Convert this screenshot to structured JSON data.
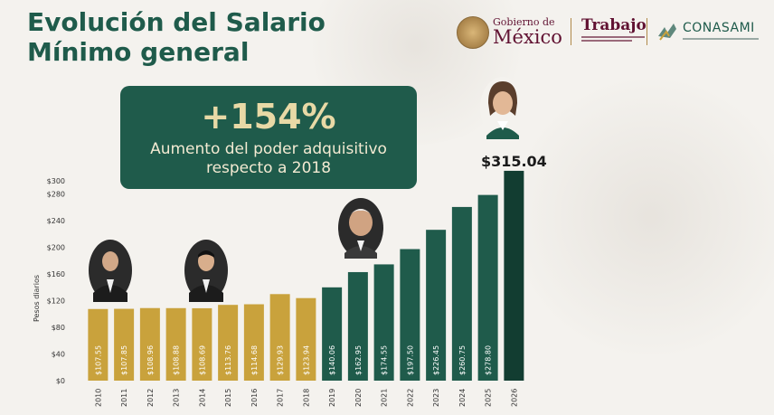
{
  "title_line1": "Evolución del Salario",
  "title_line2": "Mínimo general",
  "logos": {
    "gob_small": "Gobierno de",
    "gob_big": "México",
    "trabajo": "Trabajo",
    "conasami": "CONASAMI"
  },
  "callout": {
    "percent": "+154%",
    "line1": "Aumento del poder adquisitivo",
    "line2": "respecto a 2018"
  },
  "colors": {
    "gold": "#c9a23c",
    "green": "#1f5b4b",
    "dark_green": "#123d31"
  },
  "chart_data": {
    "type": "bar",
    "categories": [
      "2010",
      "2011",
      "2012",
      "2013",
      "2014",
      "2015",
      "2016",
      "2017",
      "2018",
      "2019",
      "2020",
      "2021",
      "2022",
      "2023",
      "2024",
      "2025",
      "2026"
    ],
    "values": [
      107.55,
      107.85,
      108.96,
      108.88,
      108.69,
      113.76,
      114.68,
      129.93,
      123.94,
      140.06,
      162.95,
      174.55,
      197.5,
      226.45,
      260.75,
      278.8,
      315.04
    ],
    "value_labels": [
      "$107.55",
      "$107.85",
      "$108.96",
      "$108.88",
      "$108.69",
      "$113.76",
      "$114.68",
      "$129.93",
      "$123.94",
      "$140.06",
      "$162.95",
      "$174.55",
      "$197.50",
      "$226.45",
      "$260.75",
      "$278.80",
      "$315.04"
    ],
    "bar_colors": [
      "gold",
      "gold",
      "gold",
      "gold",
      "gold",
      "gold",
      "gold",
      "gold",
      "gold",
      "green",
      "green",
      "green",
      "green",
      "green",
      "green",
      "green",
      "dark_green"
    ],
    "ylabel": "Pesos diarios",
    "ylim": [
      0,
      300
    ],
    "yticks": [
      0,
      40,
      80,
      120,
      160,
      200,
      240,
      280,
      300
    ],
    "ytick_labels": [
      "$0",
      "$40",
      "$80",
      "$120",
      "$160",
      "$200",
      "$240",
      "$280",
      "$300"
    ],
    "top_label": "$315.04",
    "grid": false
  }
}
